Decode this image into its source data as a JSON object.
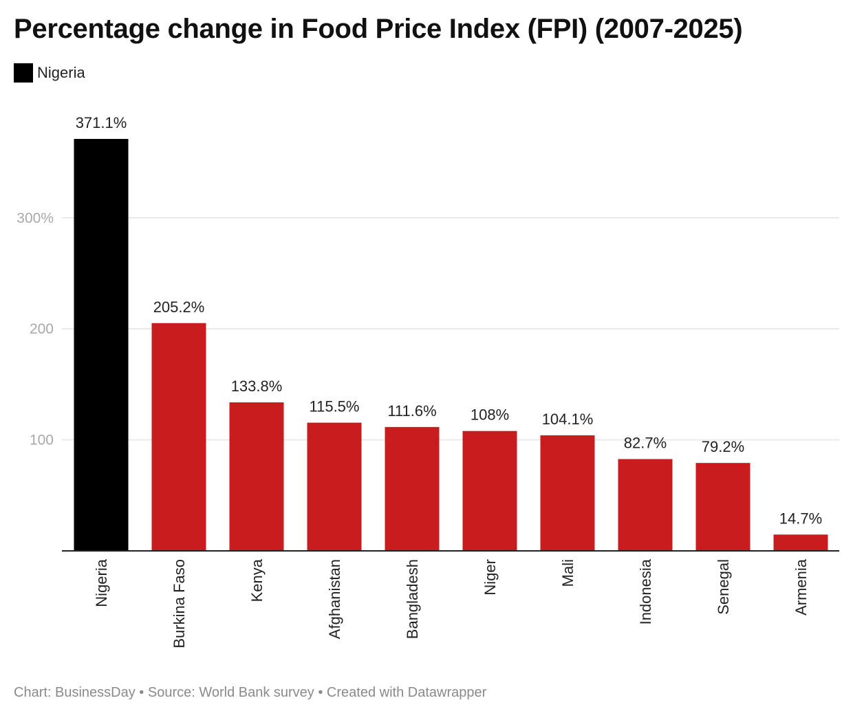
{
  "title": "Percentage change in Food Price Index (FPI) (2007-2025)",
  "legend": {
    "label": "Nigeria",
    "color": "#000000"
  },
  "colors": {
    "highlight": "#000000",
    "default": "#c81c1f",
    "grid": "#e3e3e3",
    "axis": "#222222",
    "tick_text": "#a8a8a8"
  },
  "chart_data": {
    "type": "bar",
    "categories": [
      "Nigeria",
      "Burkina Faso",
      "Kenya",
      "Afghanistan",
      "Bangladesh",
      "Niger",
      "Mali",
      "Indonesia",
      "Senegal",
      "Armenia"
    ],
    "values": [
      371.1,
      205.2,
      133.8,
      115.5,
      111.6,
      108,
      104.1,
      82.7,
      79.2,
      14.7
    ],
    "data_labels": [
      "371.1%",
      "205.2%",
      "133.8%",
      "115.5%",
      "111.6%",
      "108%",
      "104.1%",
      "82.7%",
      "79.2%",
      "14.7%"
    ],
    "highlight": [
      "Nigeria"
    ],
    "yticks": [
      100,
      200,
      300
    ],
    "ytick_labels": [
      "100",
      "200",
      "300%"
    ],
    "ylim": [
      0,
      371.1
    ],
    "grid": true,
    "legend_position": "top-left",
    "xlabel": "",
    "ylabel": ""
  },
  "footer": "Chart: BusinessDay • Source: World Bank survey • Created with Datawrapper"
}
